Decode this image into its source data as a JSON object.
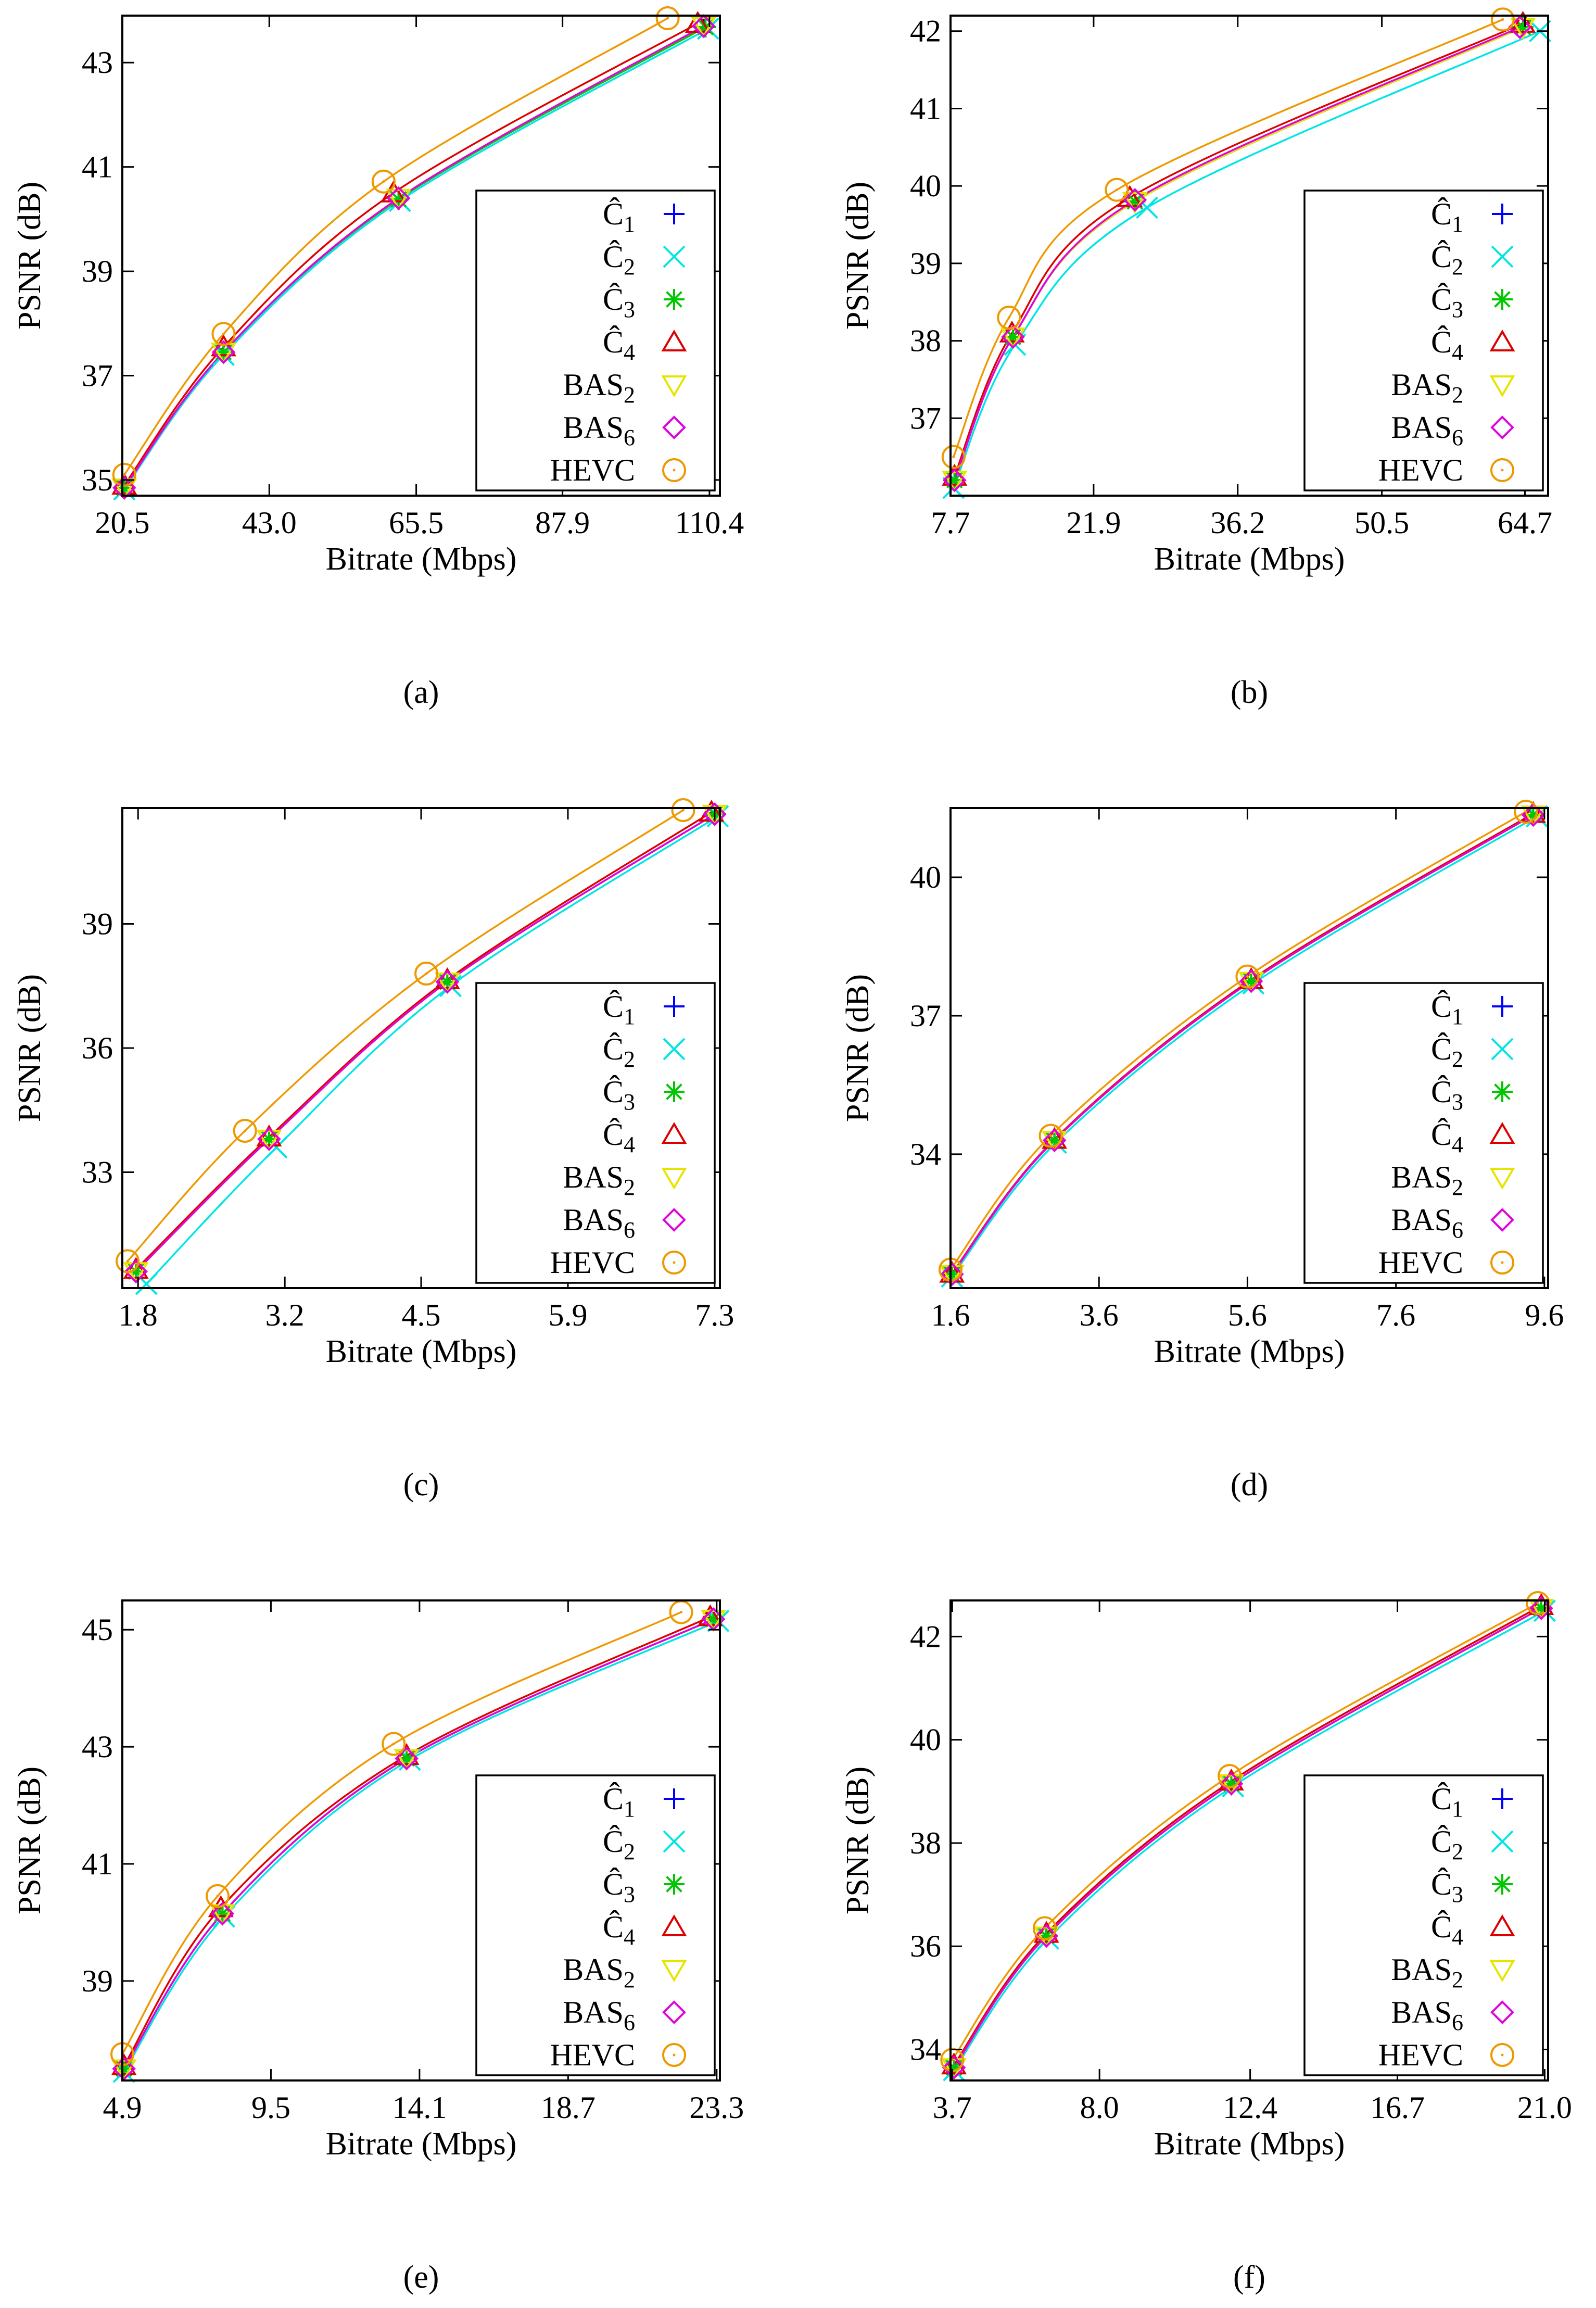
{
  "figure": {
    "panels_count": 6,
    "series_styles": [
      {
        "key": "C1",
        "color": "#0000ff",
        "marker": "plus"
      },
      {
        "key": "C2",
        "color": "#00e5e5",
        "marker": "cross"
      },
      {
        "key": "C3",
        "color": "#00c800",
        "marker": "asterisk"
      },
      {
        "key": "C4",
        "color": "#dd0000",
        "marker": "triangle-up"
      },
      {
        "key": "BAS2",
        "color": "#e5e500",
        "marker": "triangle-down"
      },
      {
        "key": "BAS6",
        "color": "#e000e0",
        "marker": "diamond"
      },
      {
        "key": "HEVC",
        "color": "#ee9900",
        "marker": "circle"
      }
    ],
    "legend_entries": [
      {
        "base": "Ĉ",
        "sub": "1"
      },
      {
        "base": "Ĉ",
        "sub": "2"
      },
      {
        "base": "Ĉ",
        "sub": "3"
      },
      {
        "base": "Ĉ",
        "sub": "4"
      },
      {
        "base": "BAS",
        "sub": "2"
      },
      {
        "base": "BAS",
        "sub": "6"
      },
      {
        "base": "HEVC",
        "sub": ""
      }
    ]
  },
  "chart_data": [
    {
      "type": "line",
      "caption": "(a)",
      "xlabel": "Bitrate (Mbps)",
      "ylabel": "PSNR (dB)",
      "xlim": [
        20.5,
        112.0
      ],
      "ylim": [
        34.7,
        43.9
      ],
      "xticks": [
        20.5,
        43.0,
        65.5,
        87.9,
        110.4
      ],
      "xtick_labels": [
        "20.5",
        "43.0",
        "65.5",
        "87.9",
        "110.4"
      ],
      "yticks": [
        35,
        37,
        39,
        41,
        43
      ],
      "ytick_labels": [
        "35",
        "37",
        "39",
        "41",
        "43"
      ],
      "legend_position": "lower-right",
      "series": [
        {
          "name": "C1",
          "x": [
            20.8,
            36.0,
            62.8,
            109.5
          ],
          "y": [
            34.85,
            37.45,
            40.38,
            43.68
          ]
        },
        {
          "name": "C2",
          "x": [
            20.8,
            36.0,
            63.0,
            110.2
          ],
          "y": [
            34.82,
            37.4,
            40.35,
            43.65
          ]
        },
        {
          "name": "C3",
          "x": [
            20.8,
            36.0,
            62.8,
            109.8
          ],
          "y": [
            34.85,
            37.45,
            40.38,
            43.68
          ]
        },
        {
          "name": "C4",
          "x": [
            20.8,
            36.0,
            62.0,
            108.6
          ],
          "y": [
            34.9,
            37.55,
            40.5,
            43.75
          ]
        },
        {
          "name": "BAS2",
          "x": [
            20.8,
            36.0,
            62.8,
            109.5
          ],
          "y": [
            34.85,
            37.45,
            40.4,
            43.7
          ]
        },
        {
          "name": "BAS6",
          "x": [
            20.8,
            36.0,
            62.8,
            109.5
          ],
          "y": [
            34.85,
            37.45,
            40.4,
            43.7
          ]
        },
        {
          "name": "HEVC",
          "x": [
            20.8,
            36.0,
            60.5,
            104.0
          ],
          "y": [
            35.1,
            37.8,
            40.72,
            43.85
          ]
        }
      ]
    },
    {
      "type": "line",
      "caption": "(b)",
      "xlabel": "Bitrate (Mbps)",
      "ylabel": "PSNR (dB)",
      "xlim": [
        7.7,
        67.0
      ],
      "ylim": [
        36.0,
        42.2
      ],
      "xticks": [
        7.7,
        21.9,
        36.2,
        50.5,
        64.7
      ],
      "xtick_labels": [
        "7.7",
        "21.9",
        "36.2",
        "50.5",
        "64.7"
      ],
      "yticks": [
        37,
        38,
        39,
        40,
        41,
        42
      ],
      "ytick_labels": [
        "37",
        "38",
        "39",
        "40",
        "41",
        "42"
      ],
      "legend_position": "lower-right",
      "series": [
        {
          "name": "C1",
          "x": [
            8.1,
            13.9,
            26.0,
            64.5
          ],
          "y": [
            36.2,
            38.05,
            39.8,
            42.05
          ]
        },
        {
          "name": "C2",
          "x": [
            8.0,
            14.1,
            27.2,
            66.2
          ],
          "y": [
            36.1,
            37.95,
            39.72,
            42.0
          ]
        },
        {
          "name": "C3",
          "x": [
            8.1,
            13.9,
            26.0,
            64.5
          ],
          "y": [
            36.2,
            38.05,
            39.8,
            42.05
          ]
        },
        {
          "name": "C4",
          "x": [
            8.1,
            13.8,
            25.5,
            64.5
          ],
          "y": [
            36.25,
            38.1,
            39.85,
            42.1
          ]
        },
        {
          "name": "BAS2",
          "x": [
            8.1,
            13.9,
            26.0,
            64.5
          ],
          "y": [
            36.2,
            38.05,
            39.8,
            42.05
          ]
        },
        {
          "name": "BAS6",
          "x": [
            8.1,
            13.9,
            26.0,
            64.2
          ],
          "y": [
            36.2,
            38.05,
            39.82,
            42.05
          ]
        },
        {
          "name": "HEVC",
          "x": [
            8.0,
            13.5,
            24.2,
            62.5
          ],
          "y": [
            36.5,
            38.3,
            39.95,
            42.15
          ]
        }
      ]
    },
    {
      "type": "line",
      "caption": "(c)",
      "xlabel": "Bitrate (Mbps)",
      "ylabel": "PSNR (dB)",
      "xlim": [
        1.65,
        7.35
      ],
      "ylim": [
        30.2,
        41.8
      ],
      "xticks": [
        1.8,
        3.2,
        4.5,
        5.9,
        7.3
      ],
      "xtick_labels": [
        "1.8",
        "3.2",
        "4.5",
        "5.9",
        "7.3"
      ],
      "yticks": [
        33,
        36,
        39
      ],
      "ytick_labels": [
        "33",
        "36",
        "39"
      ],
      "legend_position": "lower-right",
      "series": [
        {
          "name": "C1",
          "x": [
            1.78,
            3.05,
            4.75,
            7.3
          ],
          "y": [
            30.6,
            33.8,
            37.6,
            41.65
          ]
        },
        {
          "name": "C2",
          "x": [
            1.88,
            3.12,
            4.78,
            7.33
          ],
          "y": [
            30.3,
            33.6,
            37.5,
            41.6
          ]
        },
        {
          "name": "C3",
          "x": [
            1.78,
            3.05,
            4.75,
            7.3
          ],
          "y": [
            30.6,
            33.8,
            37.6,
            41.65
          ]
        },
        {
          "name": "C4",
          "x": [
            1.78,
            3.05,
            4.75,
            7.27
          ],
          "y": [
            30.65,
            33.85,
            37.65,
            41.7
          ]
        },
        {
          "name": "BAS2",
          "x": [
            1.78,
            3.05,
            4.75,
            7.3
          ],
          "y": [
            30.6,
            33.8,
            37.6,
            41.65
          ]
        },
        {
          "name": "BAS6",
          "x": [
            1.78,
            3.05,
            4.75,
            7.3
          ],
          "y": [
            30.6,
            33.8,
            37.6,
            41.65
          ]
        },
        {
          "name": "HEVC",
          "x": [
            1.7,
            2.82,
            4.55,
            7.0
          ],
          "y": [
            30.85,
            34.0,
            37.8,
            41.75
          ]
        }
      ]
    },
    {
      "type": "line",
      "caption": "(d)",
      "xlabel": "Bitrate (Mbps)",
      "ylabel": "PSNR (dB)",
      "xlim": [
        1.6,
        9.65
      ],
      "ylim": [
        31.1,
        41.5
      ],
      "xticks": [
        1.6,
        3.6,
        5.6,
        7.6,
        9.6
      ],
      "xtick_labels": [
        "1.6",
        "3.6",
        "5.6",
        "7.6",
        "9.6"
      ],
      "yticks": [
        34,
        37,
        40
      ],
      "ytick_labels": [
        "34",
        "37",
        "40"
      ],
      "legend_position": "lower-right",
      "series": [
        {
          "name": "C1",
          "x": [
            1.62,
            3.0,
            5.65,
            9.45
          ],
          "y": [
            31.4,
            34.3,
            37.75,
            41.35
          ]
        },
        {
          "name": "C2",
          "x": [
            1.62,
            3.02,
            5.68,
            9.5
          ],
          "y": [
            31.35,
            34.25,
            37.7,
            41.32
          ]
        },
        {
          "name": "C3",
          "x": [
            1.62,
            3.0,
            5.65,
            9.45
          ],
          "y": [
            31.4,
            34.3,
            37.75,
            41.35
          ]
        },
        {
          "name": "C4",
          "x": [
            1.62,
            3.0,
            5.65,
            9.45
          ],
          "y": [
            31.42,
            34.32,
            37.78,
            41.38
          ]
        },
        {
          "name": "BAS2",
          "x": [
            1.62,
            3.0,
            5.65,
            9.45
          ],
          "y": [
            31.4,
            34.3,
            37.75,
            41.35
          ]
        },
        {
          "name": "BAS6",
          "x": [
            1.62,
            3.0,
            5.65,
            9.45
          ],
          "y": [
            31.4,
            34.3,
            37.75,
            41.35
          ]
        },
        {
          "name": "HEVC",
          "x": [
            1.6,
            2.95,
            5.6,
            9.35
          ],
          "y": [
            31.5,
            34.4,
            37.85,
            41.42
          ]
        }
      ]
    },
    {
      "type": "line",
      "caption": "(e)",
      "xlabel": "Bitrate (Mbps)",
      "ylabel": "PSNR (dB)",
      "xlim": [
        4.9,
        23.4
      ],
      "ylim": [
        37.3,
        45.5
      ],
      "xticks": [
        4.9,
        9.5,
        14.1,
        18.7,
        23.3
      ],
      "xtick_labels": [
        "4.9",
        "9.5",
        "14.1",
        "18.7",
        "23.3"
      ],
      "yticks": [
        39,
        41,
        43,
        45
      ],
      "ytick_labels": [
        "39",
        "41",
        "43",
        "45"
      ],
      "legend_position": "lower-right",
      "series": [
        {
          "name": "C1",
          "x": [
            4.95,
            8.0,
            13.7,
            23.2
          ],
          "y": [
            37.5,
            40.15,
            42.8,
            45.18
          ]
        },
        {
          "name": "C2",
          "x": [
            4.95,
            8.05,
            13.8,
            23.35
          ],
          "y": [
            37.45,
            40.1,
            42.78,
            45.15
          ]
        },
        {
          "name": "C3",
          "x": [
            4.95,
            8.0,
            13.7,
            23.2
          ],
          "y": [
            37.5,
            40.15,
            42.8,
            45.18
          ]
        },
        {
          "name": "C4",
          "x": [
            4.95,
            7.95,
            13.7,
            23.1
          ],
          "y": [
            37.55,
            40.25,
            42.85,
            45.22
          ]
        },
        {
          "name": "BAS2",
          "x": [
            4.95,
            8.0,
            13.7,
            23.2
          ],
          "y": [
            37.5,
            40.15,
            42.8,
            45.18
          ]
        },
        {
          "name": "BAS6",
          "x": [
            4.95,
            8.0,
            13.7,
            23.2
          ],
          "y": [
            37.5,
            40.15,
            42.8,
            45.18
          ]
        },
        {
          "name": "HEVC",
          "x": [
            4.9,
            7.85,
            13.3,
            22.2
          ],
          "y": [
            37.75,
            40.45,
            43.05,
            45.3
          ]
        }
      ]
    },
    {
      "type": "line",
      "caption": "(f)",
      "xlabel": "Bitrate (Mbps)",
      "ylabel": "PSNR (dB)",
      "xlim": [
        3.65,
        21.1
      ],
      "ylim": [
        33.4,
        42.7
      ],
      "xticks": [
        3.7,
        8.0,
        12.4,
        16.7,
        21.0
      ],
      "xtick_labels": [
        "3.7",
        "8.0",
        "12.4",
        "16.7",
        "21.0"
      ],
      "yticks": [
        34,
        36,
        38,
        40,
        42
      ],
      "ytick_labels": [
        "34",
        "36",
        "38",
        "40",
        "42"
      ],
      "legend_position": "lower-right",
      "series": [
        {
          "name": "C1",
          "x": [
            3.75,
            6.45,
            11.85,
            20.9
          ],
          "y": [
            33.65,
            36.2,
            39.15,
            42.55
          ]
        },
        {
          "name": "C2",
          "x": [
            3.75,
            6.5,
            11.9,
            21.0
          ],
          "y": [
            33.6,
            36.15,
            39.1,
            42.5
          ]
        },
        {
          "name": "C3",
          "x": [
            3.75,
            6.45,
            11.85,
            20.9
          ],
          "y": [
            33.65,
            36.2,
            39.15,
            42.55
          ]
        },
        {
          "name": "C4",
          "x": [
            3.75,
            6.45,
            11.85,
            20.9
          ],
          "y": [
            33.7,
            36.25,
            39.2,
            42.6
          ]
        },
        {
          "name": "BAS2",
          "x": [
            3.75,
            6.45,
            11.85,
            20.9
          ],
          "y": [
            33.65,
            36.2,
            39.15,
            42.55
          ]
        },
        {
          "name": "BAS6",
          "x": [
            3.75,
            6.45,
            11.85,
            20.9
          ],
          "y": [
            33.65,
            36.2,
            39.15,
            42.55
          ]
        },
        {
          "name": "HEVC",
          "x": [
            3.7,
            6.4,
            11.8,
            20.8
          ],
          "y": [
            33.8,
            36.35,
            39.3,
            42.65
          ]
        }
      ]
    }
  ]
}
